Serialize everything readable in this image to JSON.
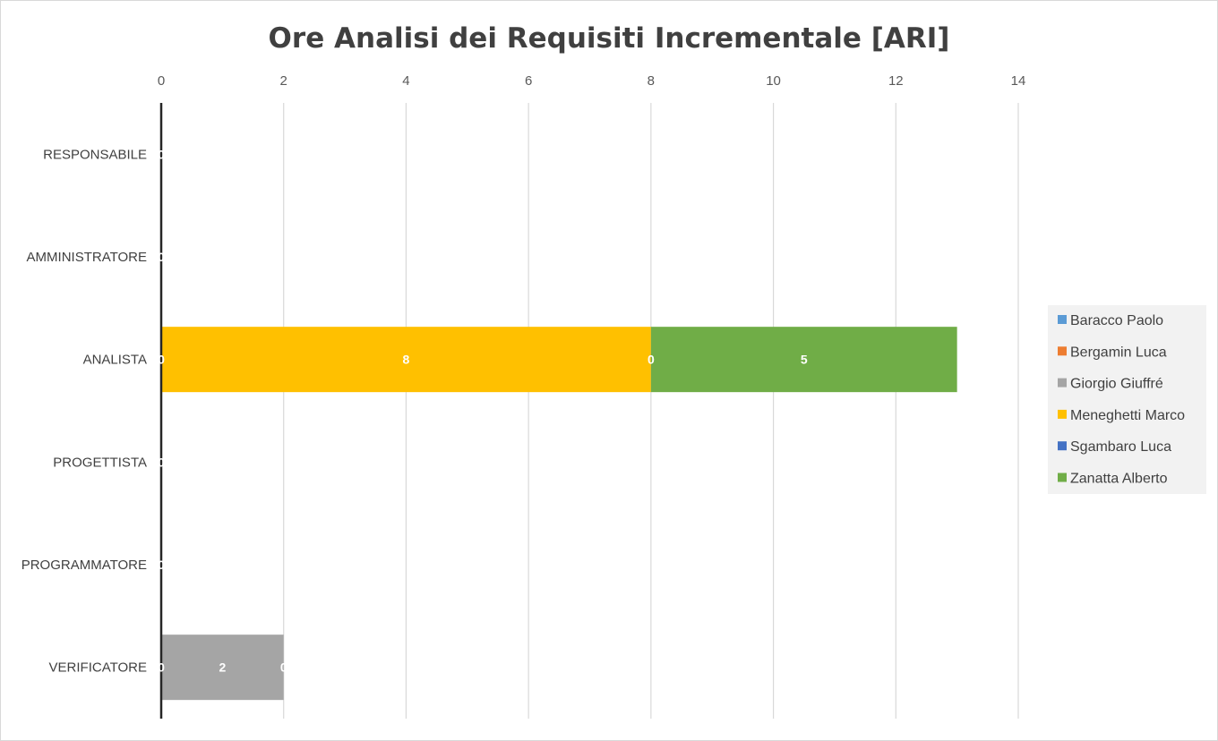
{
  "chart_data": {
    "type": "bar",
    "orientation": "horizontal",
    "stacked": true,
    "title": "Ore Analisi dei Requisiti Incrementale [ARI]",
    "xlabel": "",
    "ylabel": "",
    "xlim": [
      0,
      14
    ],
    "x_ticks": [
      0,
      2,
      4,
      6,
      8,
      10,
      12,
      14
    ],
    "x_axis_position": "top",
    "grid": true,
    "legend_position": "right",
    "categories": [
      "RESPONSABILE",
      "AMMINISTRATORE",
      "ANALISTA",
      "PROGETTISTA",
      "PROGRAMMATORE",
      "VERIFICATORE"
    ],
    "series": [
      {
        "name": "Baracco Paolo",
        "color": "#5B9BD5",
        "values": [
          0,
          0,
          0,
          0,
          0,
          0
        ]
      },
      {
        "name": "Bergamin Luca",
        "color": "#ED7D31",
        "values": [
          0,
          0,
          0,
          0,
          0,
          0
        ]
      },
      {
        "name": "Giorgio Giuffré",
        "color": "#A5A5A5",
        "values": [
          0,
          0,
          0,
          0,
          0,
          2
        ]
      },
      {
        "name": "Meneghetti Marco",
        "color": "#FFC000",
        "values": [
          0,
          0,
          8,
          0,
          0,
          0
        ]
      },
      {
        "name": "Sgambaro Luca",
        "color": "#4472C4",
        "values": [
          0,
          0,
          0,
          0,
          0,
          0
        ]
      },
      {
        "name": "Zanatta Alberto",
        "color": "#70AD47",
        "values": [
          0,
          0,
          5,
          0,
          0,
          0
        ]
      }
    ],
    "data_labels": [
      {
        "category": "RESPONSABILE",
        "series": "Baracco Paolo",
        "text": "0"
      },
      {
        "category": "AMMINISTRATORE",
        "series": "Baracco Paolo",
        "text": "0"
      },
      {
        "category": "ANALISTA",
        "series": "Baracco Paolo",
        "text": "0"
      },
      {
        "category": "ANALISTA",
        "series": "Meneghetti Marco",
        "text": "8"
      },
      {
        "category": "ANALISTA",
        "series": "Sgambaro Luca",
        "text": "0"
      },
      {
        "category": "ANALISTA",
        "series": "Zanatta Alberto",
        "text": "5"
      },
      {
        "category": "PROGETTISTA",
        "series": "Baracco Paolo",
        "text": "0"
      },
      {
        "category": "PROGRAMMATORE",
        "series": "Baracco Paolo",
        "text": "0"
      },
      {
        "category": "VERIFICATORE",
        "series": "Baracco Paolo",
        "text": "0"
      },
      {
        "category": "VERIFICATORE",
        "series": "Giorgio Giuffré",
        "text": "2"
      },
      {
        "category": "VERIFICATORE",
        "series": "Meneghetti Marco",
        "text": "0"
      }
    ]
  }
}
